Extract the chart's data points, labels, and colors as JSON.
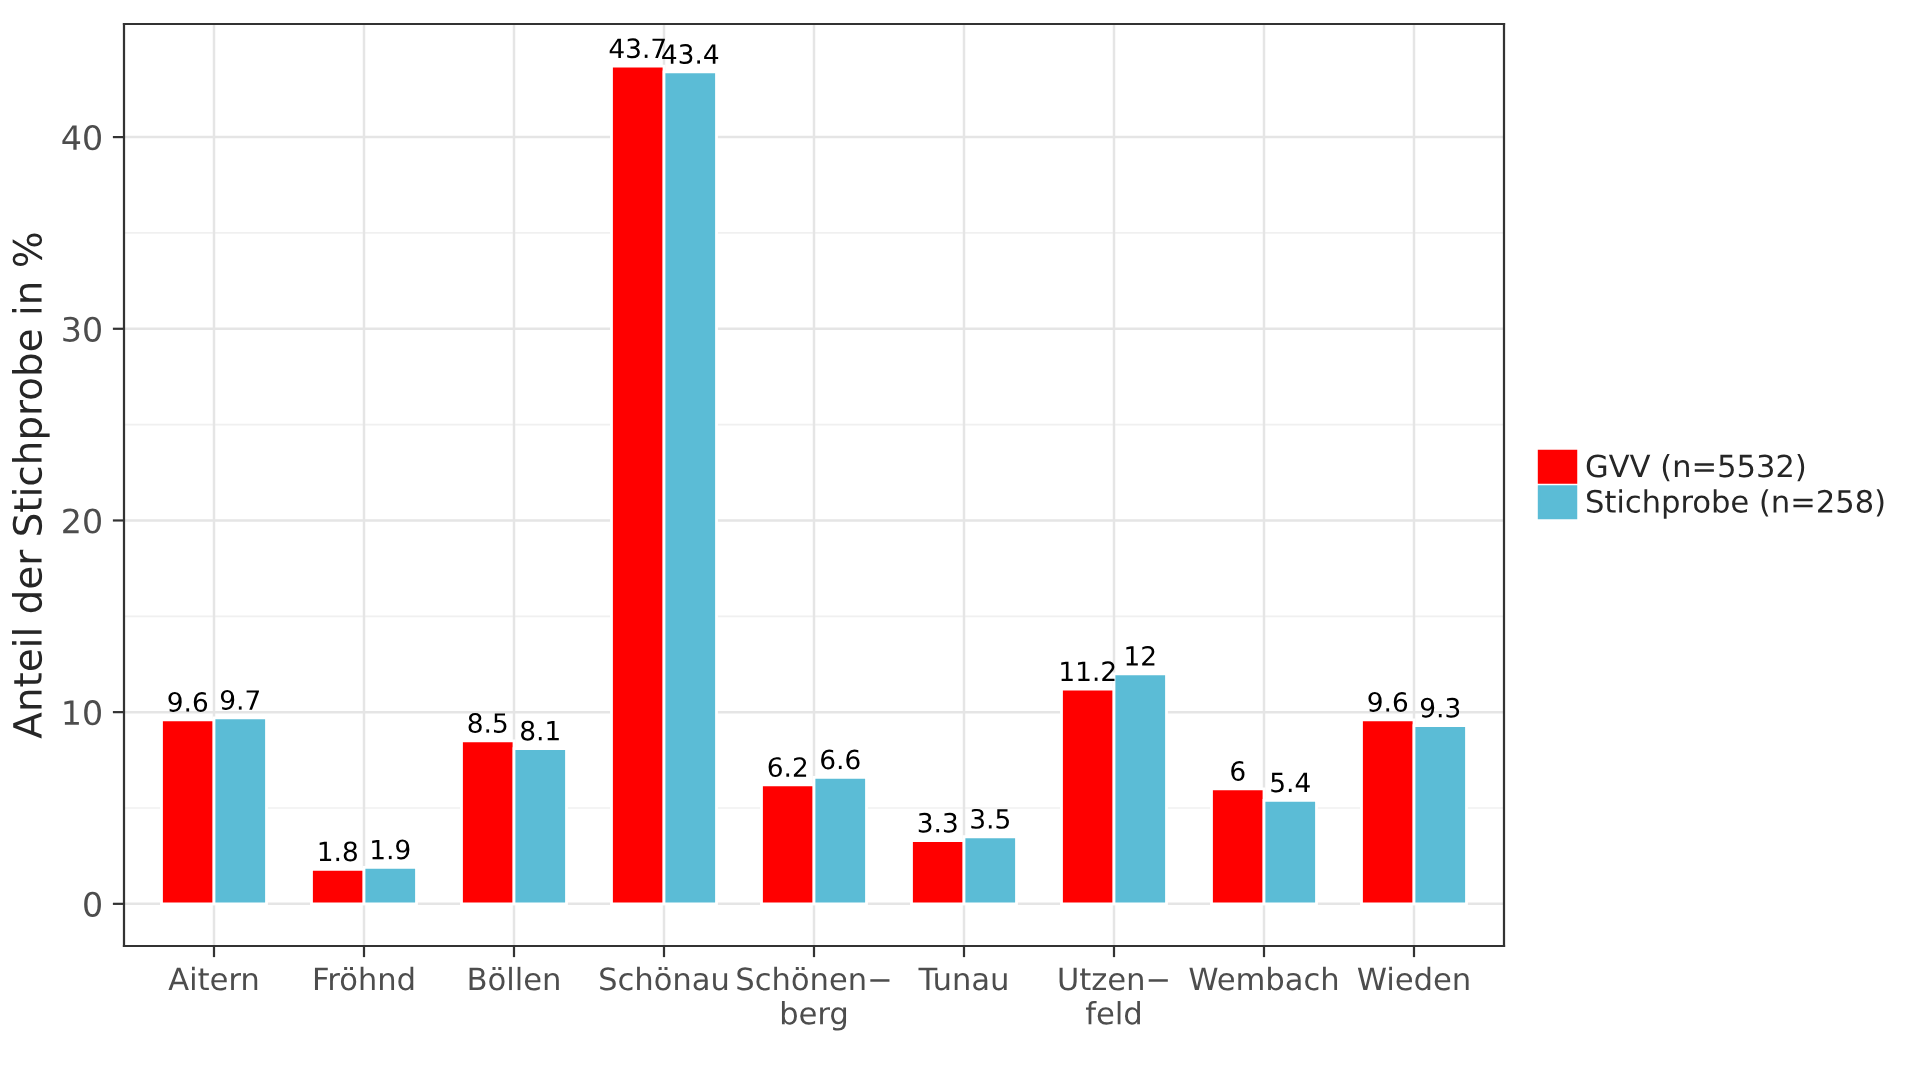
{
  "chart_data": {
    "type": "bar",
    "ylabel": "Anteil der Stichprobe in %",
    "categories": [
      "Aitern",
      "Fröhnd",
      "Böllen",
      "Schönau",
      "Schönen−\nberg",
      "Tunau",
      "Utzen−\nfeld",
      "Wembach",
      "Wieden"
    ],
    "series": [
      {
        "name": "GVV (n=5532)",
        "color": "#ff0000",
        "values": [
          9.6,
          1.8,
          8.5,
          43.7,
          6.2,
          3.3,
          11.2,
          6,
          9.6
        ]
      },
      {
        "name": "Stichprobe (n=258)",
        "color": "#5bbcd6",
        "values": [
          9.7,
          1.9,
          8.1,
          43.4,
          6.6,
          3.5,
          12,
          5.4,
          9.3
        ]
      }
    ],
    "ylim": [
      -2.2,
      45.9
    ],
    "yticks": [
      0,
      10,
      20,
      30,
      40
    ],
    "grid": true,
    "legend": "right",
    "data_labels": true
  }
}
